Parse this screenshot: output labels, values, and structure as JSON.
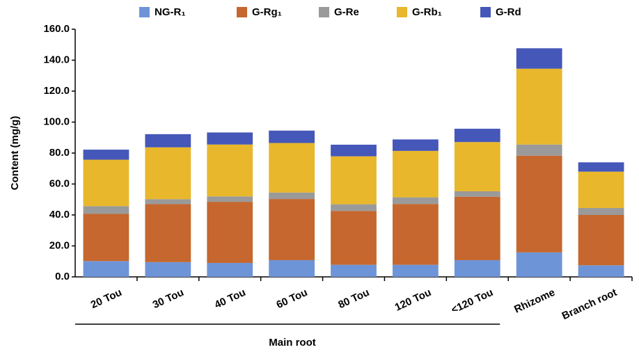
{
  "chart_data": {
    "type": "stacked_bar",
    "y_label": "Content (mg/g)",
    "categories": [
      "20 Tou",
      "30 Tou",
      "40 Tou",
      "60 Tou",
      "80 Tou",
      "120 Tou",
      "<120 Tou",
      "Rhizome",
      "Branch root"
    ],
    "series": [
      {
        "name": "NG-R₁",
        "color": "#6e94d8",
        "values": [
          10.2,
          9.5,
          9.0,
          10.8,
          7.8,
          7.8,
          10.8,
          15.8,
          7.5
        ]
      },
      {
        "name": "G-Rg₁",
        "color": "#c5672e",
        "values": [
          30.5,
          37.5,
          39.5,
          39.5,
          34.8,
          39.3,
          41.0,
          62.5,
          32.5
        ]
      },
      {
        "name": "G-Re",
        "color": "#9a9a9a",
        "values": [
          5.0,
          3.2,
          3.5,
          4.2,
          4.3,
          4.3,
          3.5,
          7.2,
          4.5
        ]
      },
      {
        "name": "G-Rb₁",
        "color": "#e8b72b",
        "values": [
          30.0,
          33.5,
          33.5,
          32.0,
          31.0,
          30.0,
          31.8,
          49.0,
          23.5
        ]
      },
      {
        "name": "G-Rd",
        "color": "#4557b8",
        "values": [
          6.5,
          8.5,
          7.8,
          8.0,
          7.5,
          7.4,
          8.6,
          13.2,
          6.0
        ]
      }
    ],
    "ylim": [
      0,
      160
    ],
    "yticks": [
      {
        "value": 0,
        "label": "0.0"
      },
      {
        "value": 20,
        "label": "20.0"
      },
      {
        "value": 40,
        "label": "40.0"
      },
      {
        "value": 60,
        "label": "60.0"
      },
      {
        "value": 80,
        "label": "80.0"
      },
      {
        "value": 100,
        "label": "100.0"
      },
      {
        "value": 120,
        "label": "120.0"
      },
      {
        "value": 140,
        "label": "140.0"
      },
      {
        "value": 160,
        "label": "160.0"
      }
    ],
    "group_label": "Main root",
    "grid": false
  }
}
